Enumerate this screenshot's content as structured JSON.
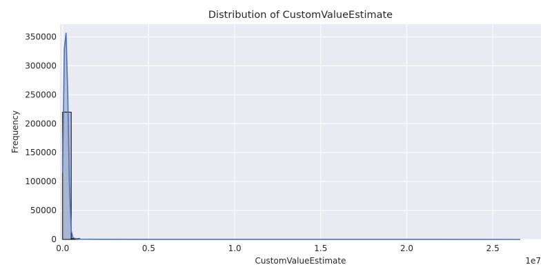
{
  "chart_data": {
    "type": "histogram",
    "title": "Distribution of CustomValueEstimate",
    "xlabel": "CustomValueEstimate",
    "ylabel": "Frequency",
    "x_offset_label": "1e7",
    "xlim": [
      -150000,
      27800000
    ],
    "ylim": [
      0,
      372000
    ],
    "x_ticks": [
      0,
      5000000,
      10000000,
      15000000,
      20000000,
      25000000
    ],
    "x_tick_labels": [
      "0.0",
      "0.5",
      "1.0",
      "1.5",
      "2.0",
      "2.5"
    ],
    "y_ticks": [
      0,
      50000,
      100000,
      150000,
      200000,
      250000,
      300000,
      350000
    ],
    "y_tick_labels": [
      "0",
      "50000",
      "100000",
      "150000",
      "200000",
      "250000",
      "300000",
      "350000"
    ],
    "grid": true,
    "bins": [
      {
        "x0": 0,
        "x1": 500000,
        "count": 220000
      },
      {
        "x0": 500000,
        "x1": 1000000,
        "count": 1500
      }
    ],
    "kde": {
      "x": [
        0,
        100000,
        200000,
        300000,
        400000,
        500000,
        600000,
        800000,
        1000000,
        2000000,
        5000000,
        10000000,
        15000000,
        20000000,
        26600000
      ],
      "y": [
        115000,
        330000,
        357000,
        250000,
        90000,
        15000,
        3000,
        800,
        400,
        200,
        100,
        50,
        30,
        20,
        10
      ]
    },
    "colors": {
      "background": "#eaeaf2",
      "grid": "#ffffff",
      "bar_fill": "#a6b2d2",
      "bar_edge": "#000000",
      "kde_line": "#4c72b0",
      "kde_fill": "#4c72b0"
    }
  }
}
